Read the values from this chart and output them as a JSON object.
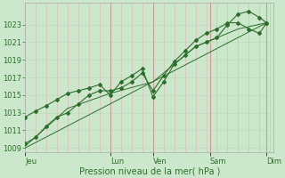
{
  "background_color": "#cce8cc",
  "plot_bg_color": "#cce8cc",
  "grid_color_h": "#bbddbb",
  "grid_color_v": "#ddbbbb",
  "vline_color": "#cc9999",
  "line_color": "#2d6e2d",
  "marker_color": "#2d6e2d",
  "ylim": [
    1008.5,
    1025.5
  ],
  "yticks": [
    1009,
    1011,
    1013,
    1015,
    1017,
    1019,
    1021,
    1023
  ],
  "xlabel": "Pression niveau de la mer( hPa )",
  "xlabel_fontsize": 7,
  "tick_fontsize": 6,
  "day_labels": [
    "Jeu",
    "Lun",
    "Ven",
    "Sam",
    "Dim"
  ],
  "day_positions": [
    0,
    72,
    108,
    156,
    204
  ],
  "vline_positions": [
    72,
    108,
    156,
    204
  ],
  "xlim": [
    0,
    210
  ],
  "line1_x": [
    0,
    9,
    18,
    27,
    36,
    45,
    54,
    63,
    72,
    81,
    90,
    99,
    108,
    117,
    126,
    135,
    144,
    153,
    162,
    171,
    180,
    189,
    198,
    204
  ],
  "line1_y": [
    1012.5,
    1013.2,
    1013.8,
    1014.5,
    1015.2,
    1015.5,
    1015.8,
    1016.2,
    1015.0,
    1016.5,
    1017.2,
    1018.0,
    1014.8,
    1016.5,
    1018.5,
    1019.5,
    1020.5,
    1021.0,
    1021.5,
    1023.0,
    1024.2,
    1024.5,
    1023.8,
    1023.2
  ],
  "line2_x": [
    0,
    9,
    18,
    27,
    36,
    45,
    54,
    63,
    72,
    81,
    90,
    99,
    108,
    117,
    126,
    135,
    144,
    153,
    162,
    171,
    180,
    189,
    198,
    204
  ],
  "line2_y": [
    1009.5,
    1010.2,
    1011.5,
    1012.5,
    1013.0,
    1014.0,
    1015.0,
    1015.5,
    1015.5,
    1015.8,
    1016.5,
    1017.5,
    1015.5,
    1017.2,
    1018.8,
    1020.0,
    1021.2,
    1022.0,
    1022.5,
    1023.2,
    1023.2,
    1022.5,
    1022.0,
    1023.2
  ],
  "line3_x": [
    0,
    36,
    72,
    108,
    144,
    180,
    204
  ],
  "line3_y": [
    1009.2,
    1013.5,
    1015.2,
    1016.5,
    1020.5,
    1022.5,
    1023.2
  ],
  "line4_x": [
    0,
    204
  ],
  "line4_y": [
    1009.0,
    1023.2
  ]
}
